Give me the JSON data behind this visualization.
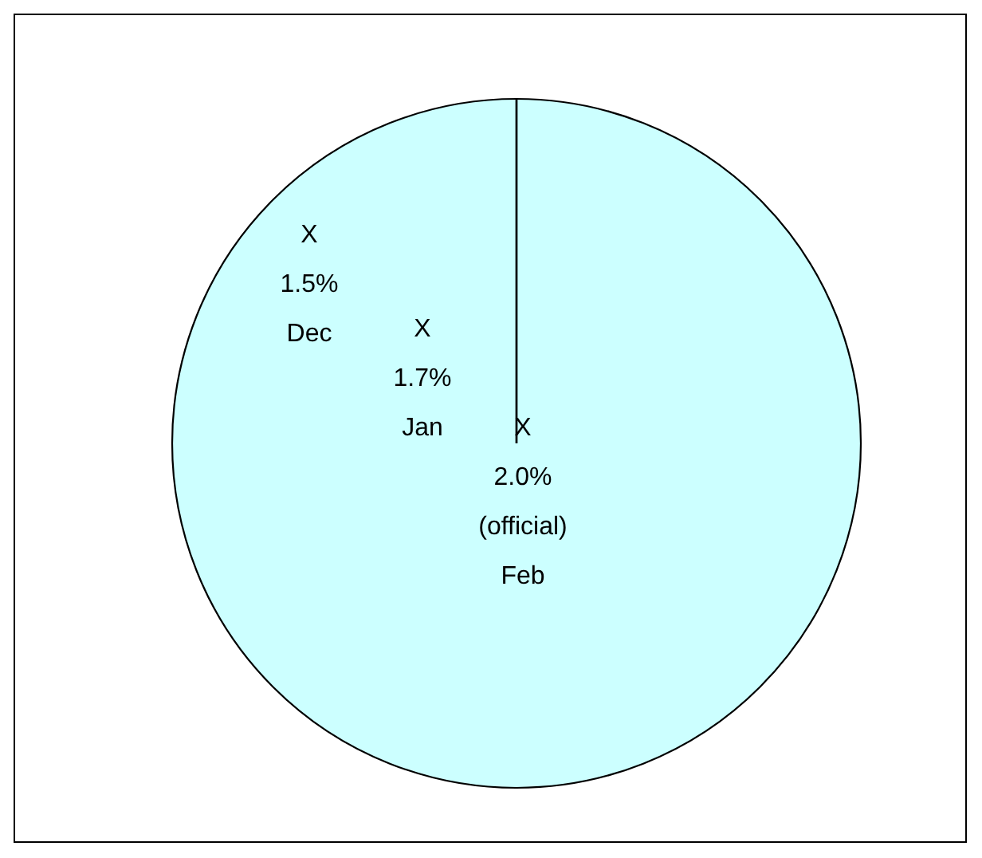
{
  "chart_data": {
    "type": "pie",
    "categories": [
      null
    ],
    "values": [
      100
    ],
    "colors": [
      "#ccffff"
    ],
    "annotations": [
      "X\n1.5%\nDec",
      "X\n1.7%\nJan",
      "X\n2.0%\n(official)\nFeb"
    ]
  }
}
